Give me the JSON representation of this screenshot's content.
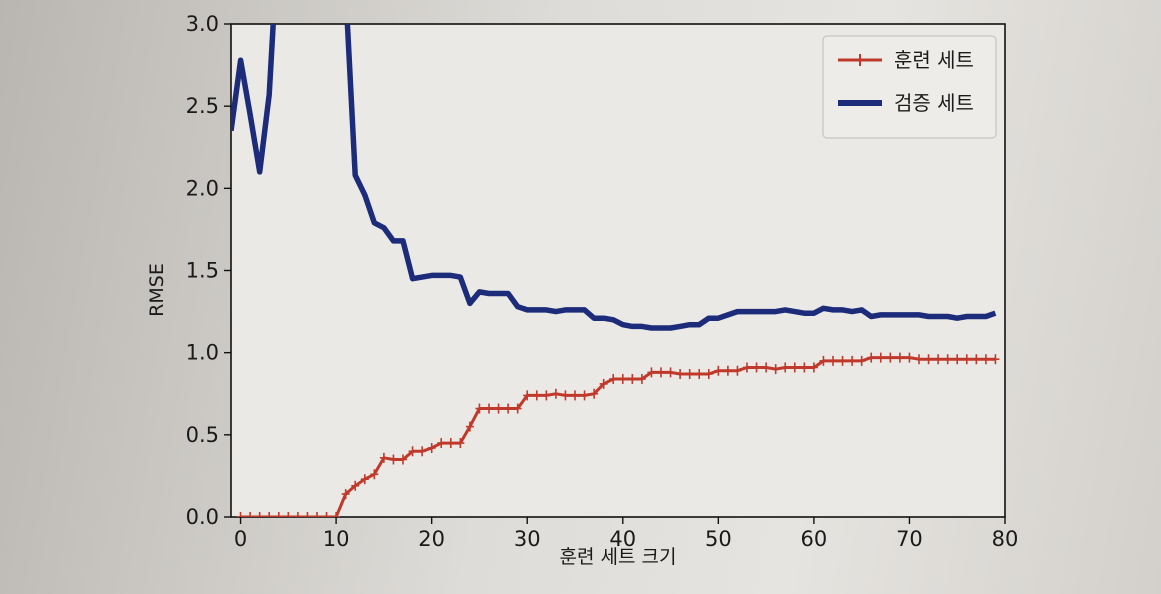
{
  "chart_data": {
    "type": "line",
    "xlabel": "훈련 세트 크기",
    "ylabel": "RMSE",
    "xlim": [
      -1,
      80
    ],
    "ylim": [
      0,
      3.0
    ],
    "xticks": [
      "0",
      "10",
      "20",
      "30",
      "40",
      "50",
      "60",
      "70",
      "80"
    ],
    "yticks": [
      "0.0",
      "0.5",
      "1.0",
      "1.5",
      "2.0",
      "2.5",
      "3.0"
    ],
    "legend": {
      "position": "top-right"
    },
    "series": [
      {
        "name": "훈련 세트",
        "color": "#c0392b",
        "marker": "+",
        "x": [
          0,
          1,
          2,
          3,
          4,
          5,
          6,
          7,
          8,
          9,
          10,
          11,
          12,
          13,
          14,
          15,
          16,
          17,
          18,
          19,
          20,
          21,
          22,
          23,
          24,
          25,
          26,
          27,
          28,
          29,
          30,
          31,
          32,
          33,
          34,
          35,
          36,
          37,
          38,
          39,
          40,
          41,
          42,
          43,
          44,
          45,
          46,
          47,
          48,
          49,
          50,
          51,
          52,
          53,
          54,
          55,
          56,
          57,
          58,
          59,
          60,
          61,
          62,
          63,
          64,
          65,
          66,
          67,
          68,
          69,
          70,
          71,
          72,
          73,
          74,
          75,
          76,
          77,
          78,
          79
        ],
        "y": [
          0,
          0,
          0,
          0,
          0,
          0,
          0,
          0,
          0,
          0,
          0,
          0.14,
          0.19,
          0.23,
          0.26,
          0.36,
          0.35,
          0.35,
          0.4,
          0.4,
          0.42,
          0.45,
          0.45,
          0.45,
          0.55,
          0.66,
          0.66,
          0.66,
          0.66,
          0.66,
          0.74,
          0.74,
          0.74,
          0.75,
          0.74,
          0.74,
          0.74,
          0.75,
          0.81,
          0.84,
          0.84,
          0.84,
          0.84,
          0.88,
          0.88,
          0.88,
          0.87,
          0.87,
          0.87,
          0.87,
          0.89,
          0.89,
          0.89,
          0.91,
          0.91,
          0.91,
          0.9,
          0.91,
          0.91,
          0.91,
          0.91,
          0.95,
          0.95,
          0.95,
          0.95,
          0.95,
          0.97,
          0.97,
          0.97,
          0.97,
          0.97,
          0.96,
          0.96,
          0.96,
          0.96,
          0.96,
          0.96,
          0.96,
          0.96,
          0.96
        ]
      },
      {
        "name": "검증 세트",
        "color": "#1c2c7a",
        "x": [
          -1,
          0,
          1,
          2,
          3,
          4,
          11,
          12,
          13,
          14,
          15,
          16,
          17,
          18,
          19,
          20,
          21,
          22,
          23,
          24,
          25,
          26,
          27,
          28,
          29,
          30,
          31,
          32,
          33,
          34,
          35,
          36,
          37,
          38,
          39,
          40,
          41,
          42,
          43,
          44,
          45,
          46,
          47,
          48,
          49,
          50,
          51,
          52,
          53,
          54,
          55,
          56,
          57,
          58,
          59,
          60,
          61,
          62,
          63,
          64,
          65,
          66,
          67,
          68,
          69,
          70,
          71,
          72,
          73,
          74,
          75,
          76,
          77,
          78,
          79
        ],
        "y": [
          2.35,
          2.78,
          2.45,
          2.1,
          2.57,
          3.6,
          3.2,
          2.08,
          1.96,
          1.79,
          1.76,
          1.68,
          1.68,
          1.45,
          1.46,
          1.47,
          1.47,
          1.47,
          1.46,
          1.3,
          1.37,
          1.36,
          1.36,
          1.36,
          1.28,
          1.26,
          1.26,
          1.26,
          1.25,
          1.26,
          1.26,
          1.26,
          1.21,
          1.21,
          1.2,
          1.17,
          1.16,
          1.16,
          1.15,
          1.15,
          1.15,
          1.16,
          1.17,
          1.17,
          1.21,
          1.21,
          1.23,
          1.25,
          1.25,
          1.25,
          1.25,
          1.25,
          1.26,
          1.25,
          1.24,
          1.24,
          1.27,
          1.26,
          1.26,
          1.25,
          1.26,
          1.22,
          1.23,
          1.23,
          1.23,
          1.23,
          1.23,
          1.22,
          1.22,
          1.22,
          1.21,
          1.22,
          1.22,
          1.22,
          1.24
        ]
      }
    ]
  }
}
